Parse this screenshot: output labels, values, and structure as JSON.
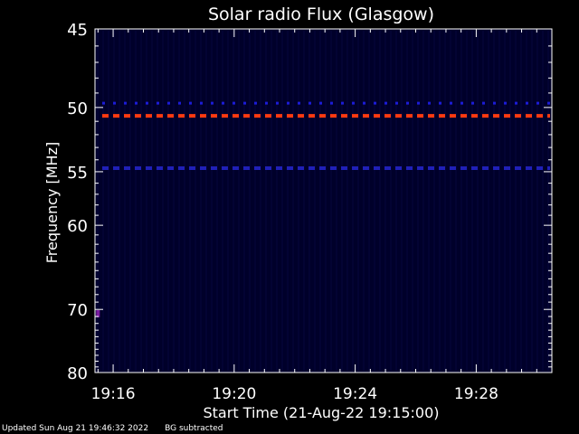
{
  "chart_data": {
    "type": "heatmap",
    "title": "Solar radio Flux (Glasgow)",
    "xlabel": "Start Time (21-Aug-22 19:15:00)",
    "ylabel": "Frequency [MHz]",
    "x_ticks": [
      "19:16",
      "19:20",
      "19:24",
      "19:28"
    ],
    "x_tick_minutes": [
      1,
      5,
      9,
      13
    ],
    "xlim_minutes": [
      0.4,
      15.5
    ],
    "y_ticks": [
      45,
      50,
      55,
      60,
      70,
      80
    ],
    "ylim": [
      45,
      80
    ],
    "y_scale": "reciprocal",
    "background_color": "#00002a",
    "bands": [
      {
        "frequency": 49.7,
        "color": "#1c1cd8",
        "dash": "dotted"
      },
      {
        "frequency": 50.6,
        "color": "#ff3a10",
        "dash": "dashed"
      },
      {
        "frequency": 54.7,
        "color": "#2020b8",
        "dash": "dashed"
      }
    ],
    "spots": [
      {
        "time_minutes": 0.5,
        "frequency": 70.6,
        "color": "#7a1aa0"
      }
    ]
  },
  "footer": {
    "updated": "Updated Sun Aug 21 19:46:32 2022",
    "note": "BG subtracted"
  }
}
